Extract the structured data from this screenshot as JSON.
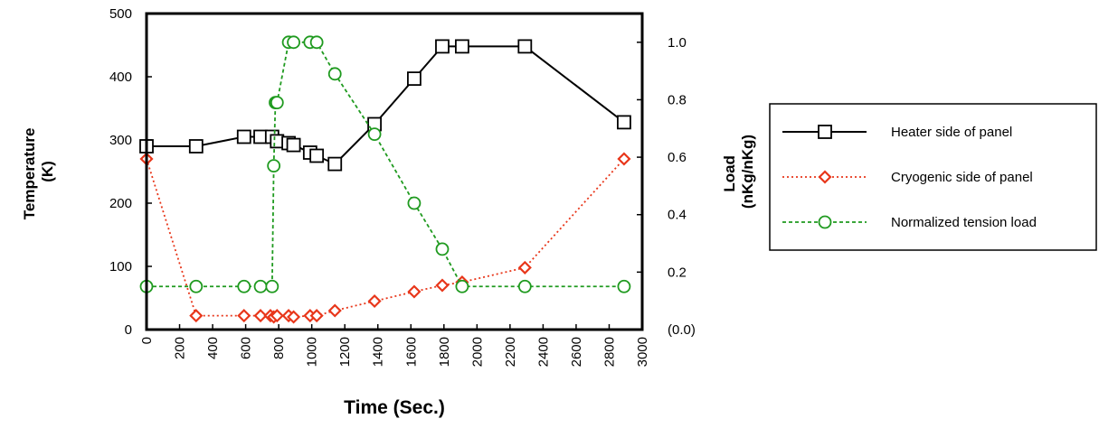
{
  "chart_data": {
    "type": "line",
    "xlabel": "Time  (Sec.)",
    "ylabel_left": [
      "Temperature",
      "(K)"
    ],
    "ylabel_right": [
      "Load",
      "(nKg/nKg)"
    ],
    "xlim": [
      0,
      3000
    ],
    "ylim_left": [
      0,
      500
    ],
    "ylim_right": [
      0.0,
      1.1
    ],
    "x_ticks": [
      "0",
      "200",
      "400",
      "600",
      "800",
      "1000",
      "1200",
      "1400",
      "1600",
      "1800",
      "2000",
      "2200",
      "2400",
      "2600",
      "2800",
      "3000"
    ],
    "y_left_ticks": [
      "0",
      "100",
      "200",
      "300",
      "400",
      "500"
    ],
    "y_right_ticks": [
      "(0.0)",
      "0.2",
      "0.4",
      "0.6",
      "0.8",
      "1.0"
    ],
    "legend_position": "right",
    "grid": false,
    "series": [
      {
        "name": "Heater side of panel",
        "axis": "left",
        "color": "#000000",
        "marker": "square",
        "line": "solid",
        "x": [
          0,
          300,
          590,
          690,
          760,
          790,
          860,
          890,
          990,
          1030,
          1140,
          1380,
          1620,
          1790,
          1910,
          2290,
          2890
        ],
        "y": [
          290,
          290,
          305,
          305,
          305,
          298,
          295,
          292,
          280,
          275,
          262,
          325,
          397,
          448,
          448,
          448,
          328
        ]
      },
      {
        "name": "Cryogenic side of panel",
        "axis": "left",
        "color": "#e8361a",
        "marker": "diamond",
        "line": "dotted",
        "x": [
          0,
          300,
          590,
          690,
          750,
          770,
          790,
          860,
          890,
          990,
          1030,
          1140,
          1380,
          1620,
          1790,
          1910,
          2290,
          2890
        ],
        "y": [
          270,
          22,
          22,
          22,
          22,
          20,
          22,
          22,
          20,
          22,
          22,
          30,
          45,
          60,
          70,
          75,
          98,
          270
        ]
      },
      {
        "name": "Normalized tension load",
        "axis": "right",
        "color": "#1f9a1f",
        "marker": "circle",
        "line": "dashed",
        "x": [
          0,
          300,
          590,
          690,
          760,
          770,
          780,
          790,
          860,
          890,
          990,
          1030,
          1140,
          1380,
          1620,
          1790,
          1910,
          2290,
          2890
        ],
        "y": [
          0.15,
          0.15,
          0.15,
          0.15,
          0.15,
          0.57,
          0.79,
          0.79,
          1.0,
          1.0,
          1.0,
          1.0,
          0.89,
          0.68,
          0.44,
          0.28,
          0.15,
          0.15,
          0.15
        ]
      }
    ]
  }
}
